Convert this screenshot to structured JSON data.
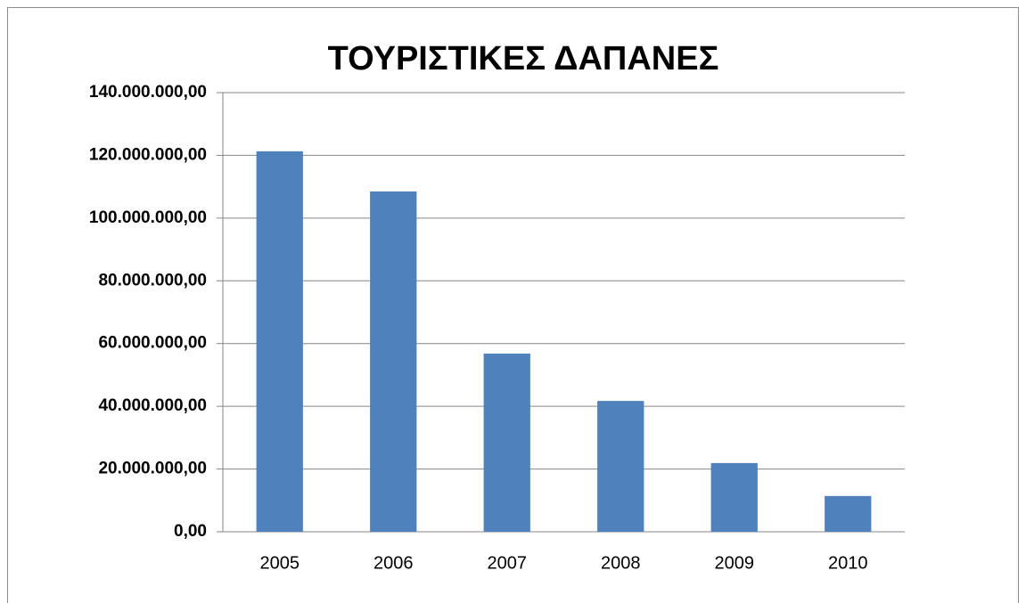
{
  "chart_data": {
    "type": "bar",
    "title": "ΤΟΥΡΙΣΤΙΚΕΣ ΔΑΠΑΝΕΣ",
    "categories": [
      "2005",
      "2006",
      "2007",
      "2008",
      "2009",
      "2010"
    ],
    "values": [
      121300000,
      108500000,
      56800000,
      41700000,
      21900000,
      11400000
    ],
    "color": "#4f81bd",
    "ylim": [
      0,
      140000000
    ],
    "yticks": [
      {
        "value": 0,
        "label": "0,00"
      },
      {
        "value": 20000000,
        "label": "20.000.000,00"
      },
      {
        "value": 40000000,
        "label": "40.000.000,00"
      },
      {
        "value": 60000000,
        "label": "60.000.000,00"
      },
      {
        "value": 80000000,
        "label": "80.000.000,00"
      },
      {
        "value": 100000000,
        "label": "100.000.000,00"
      },
      {
        "value": 120000000,
        "label": "120.000.000,00"
      },
      {
        "value": 140000000,
        "label": "140.000.000,00"
      }
    ],
    "grid": true
  }
}
